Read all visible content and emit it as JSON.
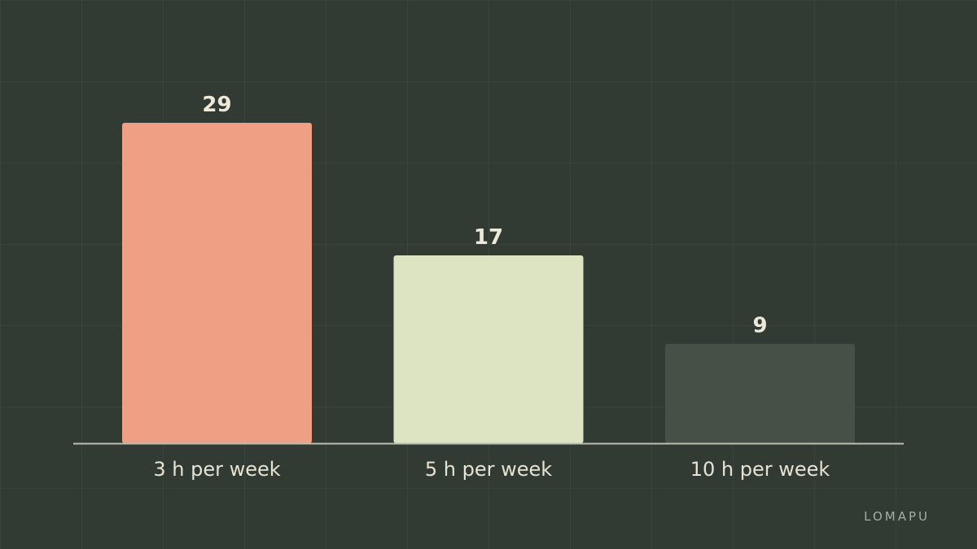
{
  "chart_data": {
    "type": "bar",
    "categories": [
      "3 h per week",
      "5 h per week",
      "10 h per week"
    ],
    "values": [
      29,
      17,
      9
    ],
    "colors": [
      "#ef9f84",
      "#dce4c2",
      "#465047"
    ],
    "title": "",
    "xlabel": "",
    "ylabel": "",
    "ylim": [
      0,
      29
    ],
    "grid": true,
    "legend": "none"
  },
  "brand": {
    "text": "LOMAPU"
  }
}
